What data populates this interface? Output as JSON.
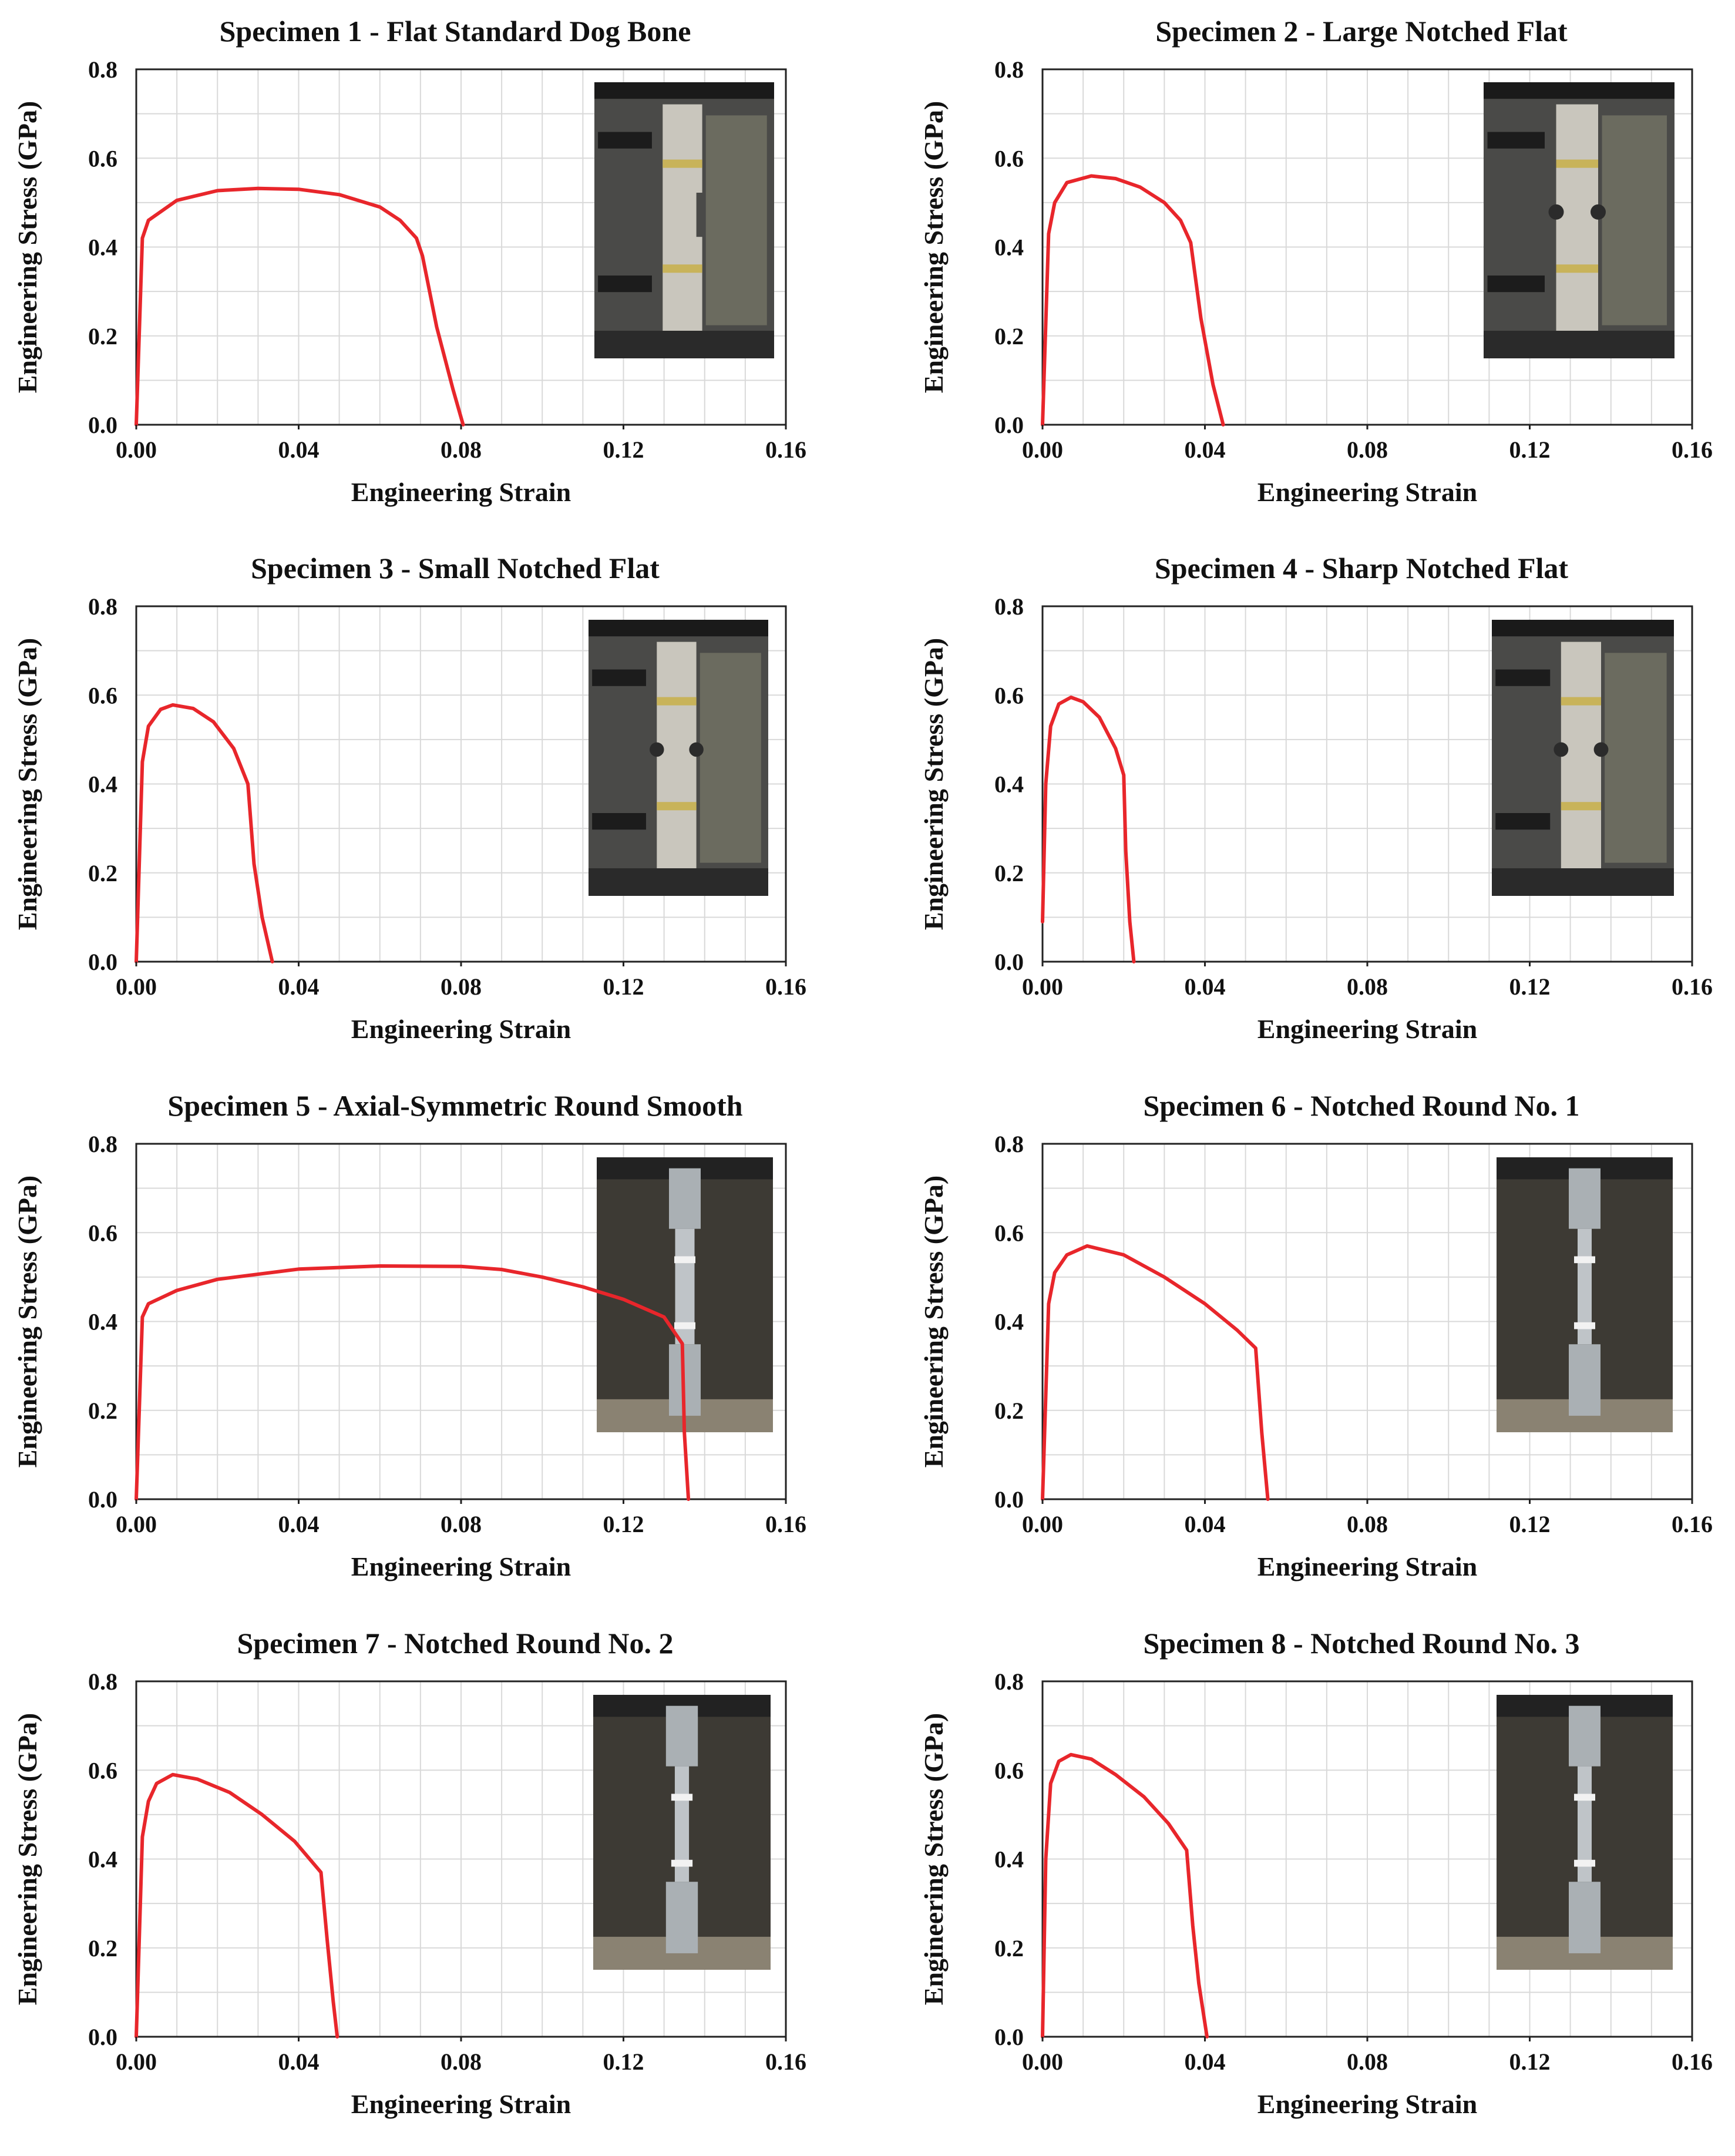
{
  "figure": {
    "xlabel": "Engineering Strain",
    "ylabel": "Engineering Stress (GPa)"
  },
  "colors": {
    "curve": "#e8262b",
    "grid": "#d9d9d9",
    "axis": "#222222"
  },
  "chart_data": [
    {
      "type": "line",
      "title": "Specimen 1 - Flat Standard Dog Bone",
      "xlabel": "Engineering Strain",
      "ylabel": "Engineering Stress (GPa)",
      "xlim": [
        0,
        0.16
      ],
      "ylim": [
        0,
        0.8
      ],
      "xticks": [
        "0.00",
        "0.04",
        "0.08",
        "0.12",
        "0.16"
      ],
      "yticks": [
        "0.0",
        "0.2",
        "0.4",
        "0.6",
        "0.8"
      ],
      "grid": true,
      "inset_photo": "flat dog-bone specimen in grips",
      "series": [
        {
          "name": "Specimen 1",
          "x": [
            0,
            0.0015,
            0.003,
            0.01,
            0.02,
            0.03,
            0.04,
            0.05,
            0.06,
            0.065,
            0.069,
            0.0705,
            0.074,
            0.078,
            0.0805
          ],
          "y": [
            0,
            0.42,
            0.46,
            0.505,
            0.527,
            0.532,
            0.53,
            0.518,
            0.49,
            0.46,
            0.42,
            0.38,
            0.22,
            0.08,
            0
          ]
        }
      ]
    },
    {
      "type": "line",
      "title": "Specimen 2 - Large Notched Flat",
      "xlabel": "Engineering Strain",
      "ylabel": "Engineering Stress (GPa)",
      "xlim": [
        0,
        0.16
      ],
      "ylim": [
        0,
        0.8
      ],
      "xticks": [
        "0.00",
        "0.04",
        "0.08",
        "0.12",
        "0.16"
      ],
      "yticks": [
        "0.0",
        "0.2",
        "0.4",
        "0.6",
        "0.8"
      ],
      "grid": true,
      "inset_photo": "large notched flat specimen in grips",
      "series": [
        {
          "name": "Specimen 2",
          "x": [
            0,
            0.0015,
            0.003,
            0.006,
            0.012,
            0.018,
            0.024,
            0.03,
            0.034,
            0.0365,
            0.039,
            0.042,
            0.0445
          ],
          "y": [
            0,
            0.43,
            0.5,
            0.545,
            0.56,
            0.554,
            0.535,
            0.5,
            0.46,
            0.41,
            0.24,
            0.09,
            0
          ]
        }
      ]
    },
    {
      "type": "line",
      "title": "Specimen 3 - Small Notched Flat",
      "xlabel": "Engineering Strain",
      "ylabel": "Engineering Stress (GPa)",
      "xlim": [
        0,
        0.16
      ],
      "ylim": [
        0,
        0.8
      ],
      "xticks": [
        "0.00",
        "0.04",
        "0.08",
        "0.12",
        "0.16"
      ],
      "yticks": [
        "0.0",
        "0.2",
        "0.4",
        "0.6",
        "0.8"
      ],
      "grid": true,
      "inset_photo": "small notched flat specimen in grips",
      "series": [
        {
          "name": "Specimen 3",
          "x": [
            0,
            0.0015,
            0.003,
            0.006,
            0.009,
            0.014,
            0.019,
            0.024,
            0.0275,
            0.029,
            0.031,
            0.0335
          ],
          "y": [
            0,
            0.45,
            0.53,
            0.568,
            0.578,
            0.57,
            0.54,
            0.48,
            0.4,
            0.22,
            0.1,
            0
          ]
        }
      ]
    },
    {
      "type": "line",
      "title": "Specimen 4 - Sharp Notched Flat",
      "xlabel": "Engineering Strain",
      "ylabel": "Engineering Stress (GPa)",
      "xlim": [
        0,
        0.16
      ],
      "ylim": [
        0,
        0.8
      ],
      "xticks": [
        "0.00",
        "0.04",
        "0.08",
        "0.12",
        "0.16"
      ],
      "yticks": [
        "0.0",
        "0.2",
        "0.4",
        "0.6",
        "0.8"
      ],
      "grid": true,
      "inset_photo": "sharp notched flat specimen in grips",
      "series": [
        {
          "name": "Specimen 4",
          "x": [
            0,
            0.0008,
            0.002,
            0.004,
            0.007,
            0.01,
            0.014,
            0.018,
            0.02,
            0.0205,
            0.0215,
            0.0225
          ],
          "y": [
            0.09,
            0.4,
            0.53,
            0.58,
            0.595,
            0.585,
            0.55,
            0.48,
            0.42,
            0.25,
            0.09,
            0
          ]
        }
      ]
    },
    {
      "type": "line",
      "title": "Specimen 5 - Axial-Symmetric Round Smooth",
      "xlabel": "Engineering Strain",
      "ylabel": "Engineering Stress (GPa)",
      "xlim": [
        0,
        0.16
      ],
      "ylim": [
        0,
        0.8
      ],
      "xticks": [
        "0.00",
        "0.04",
        "0.08",
        "0.12",
        "0.16"
      ],
      "yticks": [
        "0.0",
        "0.2",
        "0.4",
        "0.6",
        "0.8"
      ],
      "grid": true,
      "inset_photo": "smooth round bar specimen in grips",
      "series": [
        {
          "name": "Specimen 5",
          "x": [
            0,
            0.0015,
            0.003,
            0.01,
            0.02,
            0.04,
            0.06,
            0.08,
            0.09,
            0.1,
            0.11,
            0.12,
            0.13,
            0.1345,
            0.135,
            0.136
          ],
          "y": [
            0,
            0.41,
            0.44,
            0.47,
            0.495,
            0.518,
            0.525,
            0.524,
            0.517,
            0.5,
            0.478,
            0.45,
            0.41,
            0.35,
            0.15,
            0
          ]
        }
      ]
    },
    {
      "type": "line",
      "title": "Specimen 6 - Notched Round No. 1",
      "xlabel": "Engineering Strain",
      "ylabel": "Engineering Stress (GPa)",
      "xlim": [
        0,
        0.16
      ],
      "ylim": [
        0,
        0.8
      ],
      "xticks": [
        "0.00",
        "0.04",
        "0.08",
        "0.12",
        "0.16"
      ],
      "yticks": [
        "0.0",
        "0.2",
        "0.4",
        "0.6",
        "0.8"
      ],
      "grid": true,
      "inset_photo": "notched round bar specimen No. 1 in grips",
      "series": [
        {
          "name": "Specimen 6",
          "x": [
            0,
            0.0015,
            0.003,
            0.006,
            0.011,
            0.02,
            0.03,
            0.04,
            0.048,
            0.0525,
            0.054,
            0.0555
          ],
          "y": [
            0,
            0.44,
            0.51,
            0.55,
            0.57,
            0.55,
            0.5,
            0.44,
            0.38,
            0.34,
            0.15,
            0
          ]
        }
      ]
    },
    {
      "type": "line",
      "title": "Specimen 7 - Notched Round No. 2",
      "xlabel": "Engineering Strain",
      "ylabel": "Engineering Stress (GPa)",
      "xlim": [
        0,
        0.16
      ],
      "ylim": [
        0,
        0.8
      ],
      "xticks": [
        "0.00",
        "0.04",
        "0.08",
        "0.12",
        "0.16"
      ],
      "yticks": [
        "0.0",
        "0.2",
        "0.4",
        "0.6",
        "0.8"
      ],
      "grid": true,
      "inset_photo": "notched round bar specimen No. 2 in grips",
      "series": [
        {
          "name": "Specimen 7",
          "x": [
            0,
            0.0015,
            0.003,
            0.005,
            0.009,
            0.015,
            0.023,
            0.031,
            0.039,
            0.0455,
            0.047,
            0.0485,
            0.0495
          ],
          "y": [
            0,
            0.45,
            0.53,
            0.57,
            0.59,
            0.58,
            0.55,
            0.5,
            0.44,
            0.37,
            0.22,
            0.08,
            0
          ]
        }
      ]
    },
    {
      "type": "line",
      "title": "Specimen 8 - Notched Round No. 3",
      "xlabel": "Engineering Strain",
      "ylabel": "Engineering Stress (GPa)",
      "xlim": [
        0,
        0.16
      ],
      "ylim": [
        0,
        0.8
      ],
      "xticks": [
        "0.00",
        "0.04",
        "0.08",
        "0.12",
        "0.16"
      ],
      "yticks": [
        "0.0",
        "0.2",
        "0.4",
        "0.6",
        "0.8"
      ],
      "grid": true,
      "inset_photo": "notched round bar specimen No. 3 in grips",
      "series": [
        {
          "name": "Specimen 8",
          "x": [
            0,
            0.0008,
            0.002,
            0.004,
            0.007,
            0.012,
            0.018,
            0.025,
            0.031,
            0.0355,
            0.037,
            0.0385,
            0.0405
          ],
          "y": [
            0,
            0.4,
            0.57,
            0.62,
            0.635,
            0.625,
            0.59,
            0.54,
            0.48,
            0.42,
            0.25,
            0.12,
            0
          ]
        }
      ]
    }
  ]
}
